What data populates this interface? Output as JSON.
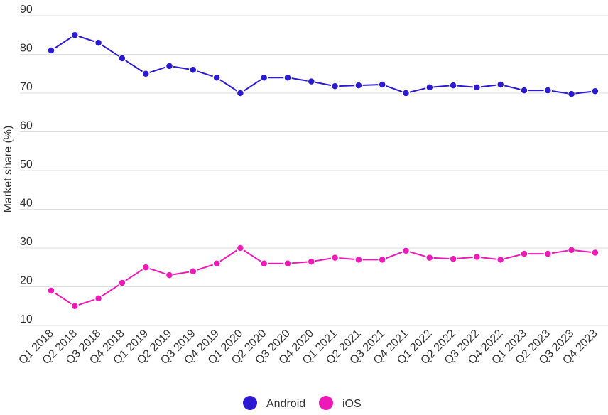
{
  "chart_data": {
    "type": "line",
    "title": "",
    "xlabel": "",
    "ylabel": "Market share (%)",
    "ylim": [
      10,
      90
    ],
    "yticks": [
      10,
      20,
      30,
      40,
      50,
      60,
      70,
      80,
      90
    ],
    "grid": true,
    "legend_position": "bottom-center",
    "categories": [
      "Q1 2018",
      "Q2 2018",
      "Q3 2018",
      "Q4 2018",
      "Q1 2019",
      "Q2 2019",
      "Q3 2019",
      "Q4 2019",
      "Q1 2020",
      "Q2 2020",
      "Q3 2020",
      "Q4 2020",
      "Q1 2021",
      "Q2 2021",
      "Q3 2021",
      "Q4 2021",
      "Q1 2022",
      "Q2 2022",
      "Q3 2022",
      "Q4 2022",
      "Q1 2023",
      "Q2 2023",
      "Q3 2023",
      "Q4 2023"
    ],
    "series": [
      {
        "name": "Android",
        "color": "#2b1acf",
        "values": [
          81,
          85,
          83,
          79,
          75,
          77,
          76,
          74,
          70,
          74,
          74,
          73,
          71.8,
          72,
          72.2,
          70,
          71.5,
          72,
          71.5,
          72.2,
          70.7,
          70.7,
          69.8,
          70.5
        ]
      },
      {
        "name": "iOS",
        "color": "#ee1ab7",
        "values": [
          19,
          15,
          17,
          21,
          25,
          23,
          24,
          26,
          30,
          26,
          26,
          26.5,
          27.5,
          27,
          27,
          29.3,
          27.5,
          27.2,
          27.7,
          27,
          28.5,
          28.5,
          29.5,
          28.8
        ]
      }
    ]
  }
}
